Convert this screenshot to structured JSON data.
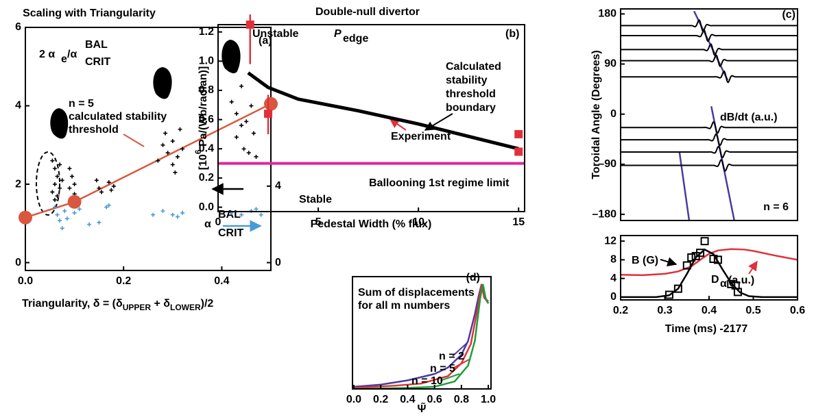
{
  "chart_data": [
    {
      "type": "scatter",
      "title": "Scaling with Triangularity",
      "xlabel": [
        "Triangularity, δ = (δ",
        "UPPER",
        " + δ",
        "LOWER",
        ")/2"
      ],
      "xlim": [
        0,
        0.5
      ],
      "ylim": [
        -0.2,
        6
      ],
      "y2lim": [
        -0.41,
        12.3
      ],
      "y2color": "#4a9ad6",
      "xticks": [
        {
          "value": 0,
          "label": "0.0"
        },
        0.2,
        0.4
      ],
      "yticks": [
        0,
        2,
        4,
        6
      ],
      "y2ticks": [
        0,
        4
      ],
      "annotations": [
        "(a)",
        "2 α",
        "e",
        "/α",
        "BAL",
        "CRIT",
        "n = 5",
        "calculated stability",
        "threshold",
        "α",
        "BAL",
        "CRIT"
      ],
      "series": [
        {
          "color": "#000000",
          "marker": "plus",
          "x": [
            0.055,
            0.06,
            0.065,
            0.06,
            0.07,
            0.065,
            0.055,
            0.07,
            0.075,
            0.06,
            0.09,
            0.095,
            0.1,
            0.09,
            0.1,
            0.145,
            0.15,
            0.155,
            0.17,
            0.175,
            0.18,
            0.27,
            0.28,
            0.285,
            0.29,
            0.3,
            0.3,
            0.31,
            0.315,
            0.32,
            0.305,
            0.42,
            0.43,
            0.44,
            0.43,
            0.445,
            0.45,
            0.46,
            0.465,
            0.47,
            0.44,
            0.455
          ],
          "values": [
            2.6,
            2.4,
            2.2,
            2.0,
            1.9,
            1.7,
            1.8,
            2.5,
            2.1,
            1.6,
            2.4,
            2.2,
            2.0,
            1.9,
            1.75,
            2.1,
            1.9,
            1.8,
            2.05,
            1.85,
            1.95,
            2.6,
            3.0,
            3.3,
            2.8,
            2.5,
            3.1,
            2.7,
            3.4,
            2.9,
            2.3,
            4.1,
            3.8,
            3.5,
            3.2,
            2.9,
            3.6,
            4.0,
            3.3,
            2.7,
            4.5,
            2.8
          ]
        },
        {
          "color": "#4a9ad6",
          "marker": "plus",
          "axis": "y2",
          "x": [
            0.06,
            0.065,
            0.07,
            0.075,
            0.08,
            0.085,
            0.1,
            0.11,
            0.13,
            0.15,
            0.165,
            0.17,
            0.26,
            0.28,
            0.3,
            0.32,
            0.31,
            0.42,
            0.44,
            0.46,
            0.48,
            0.47
          ],
          "values": [
            2.9,
            2.5,
            2.2,
            1.8,
            2.7,
            2.3,
            2.6,
            2.8,
            2.0,
            2.1,
            2.9,
            3.0,
            2.5,
            2.7,
            2.5,
            2.6,
            2.4,
            2.6,
            2.5,
            2.7,
            2.5,
            2.8
          ]
        },
        {
          "color": "#d9573f",
          "line": true,
          "marker": "circle",
          "x": [
            0,
            0.1,
            0.5
          ],
          "values": [
            1.15,
            1.55,
            4.05
          ]
        }
      ]
    },
    {
      "type": "line",
      "title": "Double-null divertor",
      "xlabel": "Pedestal Width (% flux)",
      "ylabel": [
        "[10",
        "6",
        " Pa/(Wb/radian)]"
      ],
      "xlim": [
        0,
        15.3
      ],
      "ylim": [
        -0.03,
        1.25
      ],
      "xticks": [
        0,
        5,
        10,
        15
      ],
      "yticks": [
        {
          "value": 0,
          "label": "0.0"
        },
        0.2,
        0.4,
        0.6,
        0.8,
        {
          "value": 1,
          "label": "1.0"
        },
        1.2
      ],
      "annotations": [
        "Unstable",
        "P",
        "edge",
        "(b)",
        "Calculated",
        "stability",
        "threshold",
        "boundary",
        "Experiment",
        "Ballooning 1st regime limit",
        "Stable"
      ],
      "hlines": [
        {
          "value": 0.3,
          "color": "#e0259a"
        }
      ],
      "series": [
        {
          "color": "#000000",
          "line": true,
          "x": [
            1.5,
            2.5,
            4,
            7,
            10,
            15
          ],
          "values": [
            0.92,
            0.82,
            0.74,
            0.66,
            0.57,
            0.4
          ]
        },
        {
          "color": "#e0303a",
          "marker": "square",
          "x": [
            1.6,
            2.5,
            15,
            15
          ],
          "values": [
            1.25,
            0.64,
            0.5,
            0.38
          ],
          "errors": [
            [
              0.27,
              0.07
            ],
            [
              0.14,
              0.13
            ],
            null,
            null
          ]
        }
      ]
    },
    {
      "type": "traces",
      "ylabel": "Toroidal Angle  (Degrees)",
      "xlim": [
        0.2,
        0.6
      ],
      "ylim": [
        -191,
        189
      ],
      "yticks": [
        {
          "value": -180,
          "label": "–180"
        },
        {
          "value": -90,
          "label": "–90"
        },
        0,
        90,
        180
      ],
      "annotations": [
        "(c)",
        "dB/dt (a.u.)",
        "n = 6"
      ],
      "trace_color": "#000000",
      "traces": [
        159,
        141,
        116,
        96,
        67,
        -24,
        -46,
        -68,
        -92
      ],
      "lines": [
        {
          "color": "#4b3aa0",
          "x": [
            0.366,
            0.442
          ],
          "values": [
            185,
            61
          ]
        },
        {
          "color": "#4b3aa0",
          "x": [
            0.405,
            0.457
          ],
          "values": [
            14,
            -191
          ]
        },
        {
          "color": "#4b3aa0",
          "x": [
            0.333,
            0.355
          ],
          "values": [
            -68,
            -191
          ]
        }
      ]
    },
    {
      "type": "line",
      "xlabel": "Time (ms) -2177",
      "xlim": [
        0.2,
        0.6
      ],
      "ylim": [
        -0.6,
        13.2
      ],
      "xticks": [
        0.2,
        0.3,
        0.4,
        0.5,
        0.6
      ],
      "yticks": [
        0,
        4,
        8,
        12
      ],
      "annotations": [
        "B (G)",
        "D",
        "α",
        "(a.u.)"
      ],
      "series": [
        {
          "color": "#e0303a",
          "line": true,
          "x": [
            0.2,
            0.25,
            0.3,
            0.33,
            0.36,
            0.38,
            0.4,
            0.42,
            0.45,
            0.48,
            0.5,
            0.55,
            0.6
          ],
          "values": [
            4.8,
            4.7,
            5.0,
            5.5,
            6.6,
            8.0,
            9.3,
            10.0,
            10.3,
            10.2,
            9.9,
            8.9,
            8.0
          ]
        },
        {
          "color": "#000000",
          "line": true,
          "x": [
            0.2,
            0.28,
            0.31,
            0.33,
            0.35,
            0.37,
            0.39,
            0.41,
            0.43,
            0.45,
            0.47,
            0.49,
            0.52,
            0.6
          ],
          "values": [
            0,
            0,
            0.4,
            1.8,
            5.0,
            8.5,
            10.2,
            9.2,
            6.0,
            3.0,
            1.0,
            0.2,
            0,
            0
          ]
        },
        {
          "color": "#000000",
          "marker": "square",
          "x": [
            0.31,
            0.33,
            0.35,
            0.36,
            0.37,
            0.38,
            0.39,
            0.41,
            0.42,
            0.45,
            0.46,
            0.465
          ],
          "values": [
            0.5,
            1.8,
            6.8,
            8.5,
            8.8,
            9.5,
            12,
            8.2,
            8.0,
            2.8,
            2.5,
            1.1
          ]
        }
      ]
    },
    {
      "type": "line",
      "xlabel": "Ψ̃",
      "xlim": [
        -0.01,
        1.02
      ],
      "ylim": [
        0,
        1.05
      ],
      "xticks": [
        {
          "value": 0,
          "label": "0.0"
        },
        0.2,
        0.4,
        0.6,
        0.8,
        {
          "value": 1,
          "label": "1.0"
        }
      ],
      "annotations": [
        "(d)",
        "Sum of displacements",
        "for all m numbers"
      ],
      "series": [
        {
          "name": "n = 2",
          "color": "#4b3aa0",
          "line": true,
          "x": [
            0,
            0.2,
            0.4,
            0.6,
            0.7,
            0.8,
            0.85,
            0.9,
            0.93,
            0.95,
            0.97,
            1.0
          ],
          "values": [
            0.02,
            0.04,
            0.08,
            0.14,
            0.2,
            0.32,
            0.45,
            0.7,
            0.88,
            0.98,
            0.86,
            0.8
          ]
        },
        {
          "name": "n = 5",
          "color": "#e0303a",
          "line": true,
          "x": [
            0,
            0.3,
            0.5,
            0.7,
            0.8,
            0.87,
            0.92,
            0.95,
            0.97,
            1.0
          ],
          "values": [
            0.01,
            0.03,
            0.05,
            0.12,
            0.24,
            0.42,
            0.75,
            0.98,
            0.85,
            0.82
          ]
        },
        {
          "name": "n = 10",
          "color": "#1a9e3a",
          "line": true,
          "x": [
            0,
            0.4,
            0.6,
            0.75,
            0.85,
            0.9,
            0.94,
            0.96,
            0.98,
            1.0
          ],
          "values": [
            0,
            0.01,
            0.02,
            0.07,
            0.22,
            0.45,
            0.85,
            0.98,
            0.85,
            0.8
          ]
        }
      ]
    }
  ]
}
